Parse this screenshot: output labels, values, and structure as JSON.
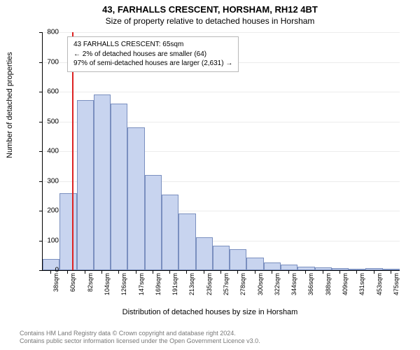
{
  "title": "43, FARHALLS CRESCENT, HORSHAM, RH12 4BT",
  "subtitle": "Size of property relative to detached houses in Horsham",
  "y_axis_title": "Number of detached properties",
  "x_axis_title": "Distribution of detached houses by size in Horsham",
  "chart": {
    "type": "histogram",
    "ylim": [
      0,
      800
    ],
    "ytick_step": 100,
    "bar_fill": "#c8d4ef",
    "bar_stroke": "#7a8fbf",
    "grid_color": "#ececec",
    "background_color": "#ffffff",
    "marker_color": "#d22",
    "marker_value": 65,
    "x_range": [
      27,
      486
    ],
    "x_tick_labels": [
      "38sqm",
      "60sqm",
      "82sqm",
      "104sqm",
      "126sqm",
      "147sqm",
      "169sqm",
      "191sqm",
      "213sqm",
      "235sqm",
      "257sqm",
      "278sqm",
      "300sqm",
      "322sqm",
      "344sqm",
      "366sqm",
      "388sqm",
      "409sqm",
      "431sqm",
      "453sqm",
      "475sqm"
    ],
    "values": [
      38,
      260,
      572,
      590,
      560,
      480,
      320,
      255,
      190,
      110,
      82,
      70,
      42,
      25,
      18,
      12,
      10,
      6,
      4,
      6,
      5
    ]
  },
  "annotation": {
    "lines": [
      "43 FARHALLS CRESCENT: 65sqm",
      "← 2% of detached houses are smaller (64)",
      "97% of semi-detached houses are larger (2,631) →"
    ]
  },
  "footer": {
    "line1": "Contains HM Land Registry data © Crown copyright and database right 2024.",
    "line2": "Contains public sector information licensed under the Open Government Licence v3.0."
  }
}
